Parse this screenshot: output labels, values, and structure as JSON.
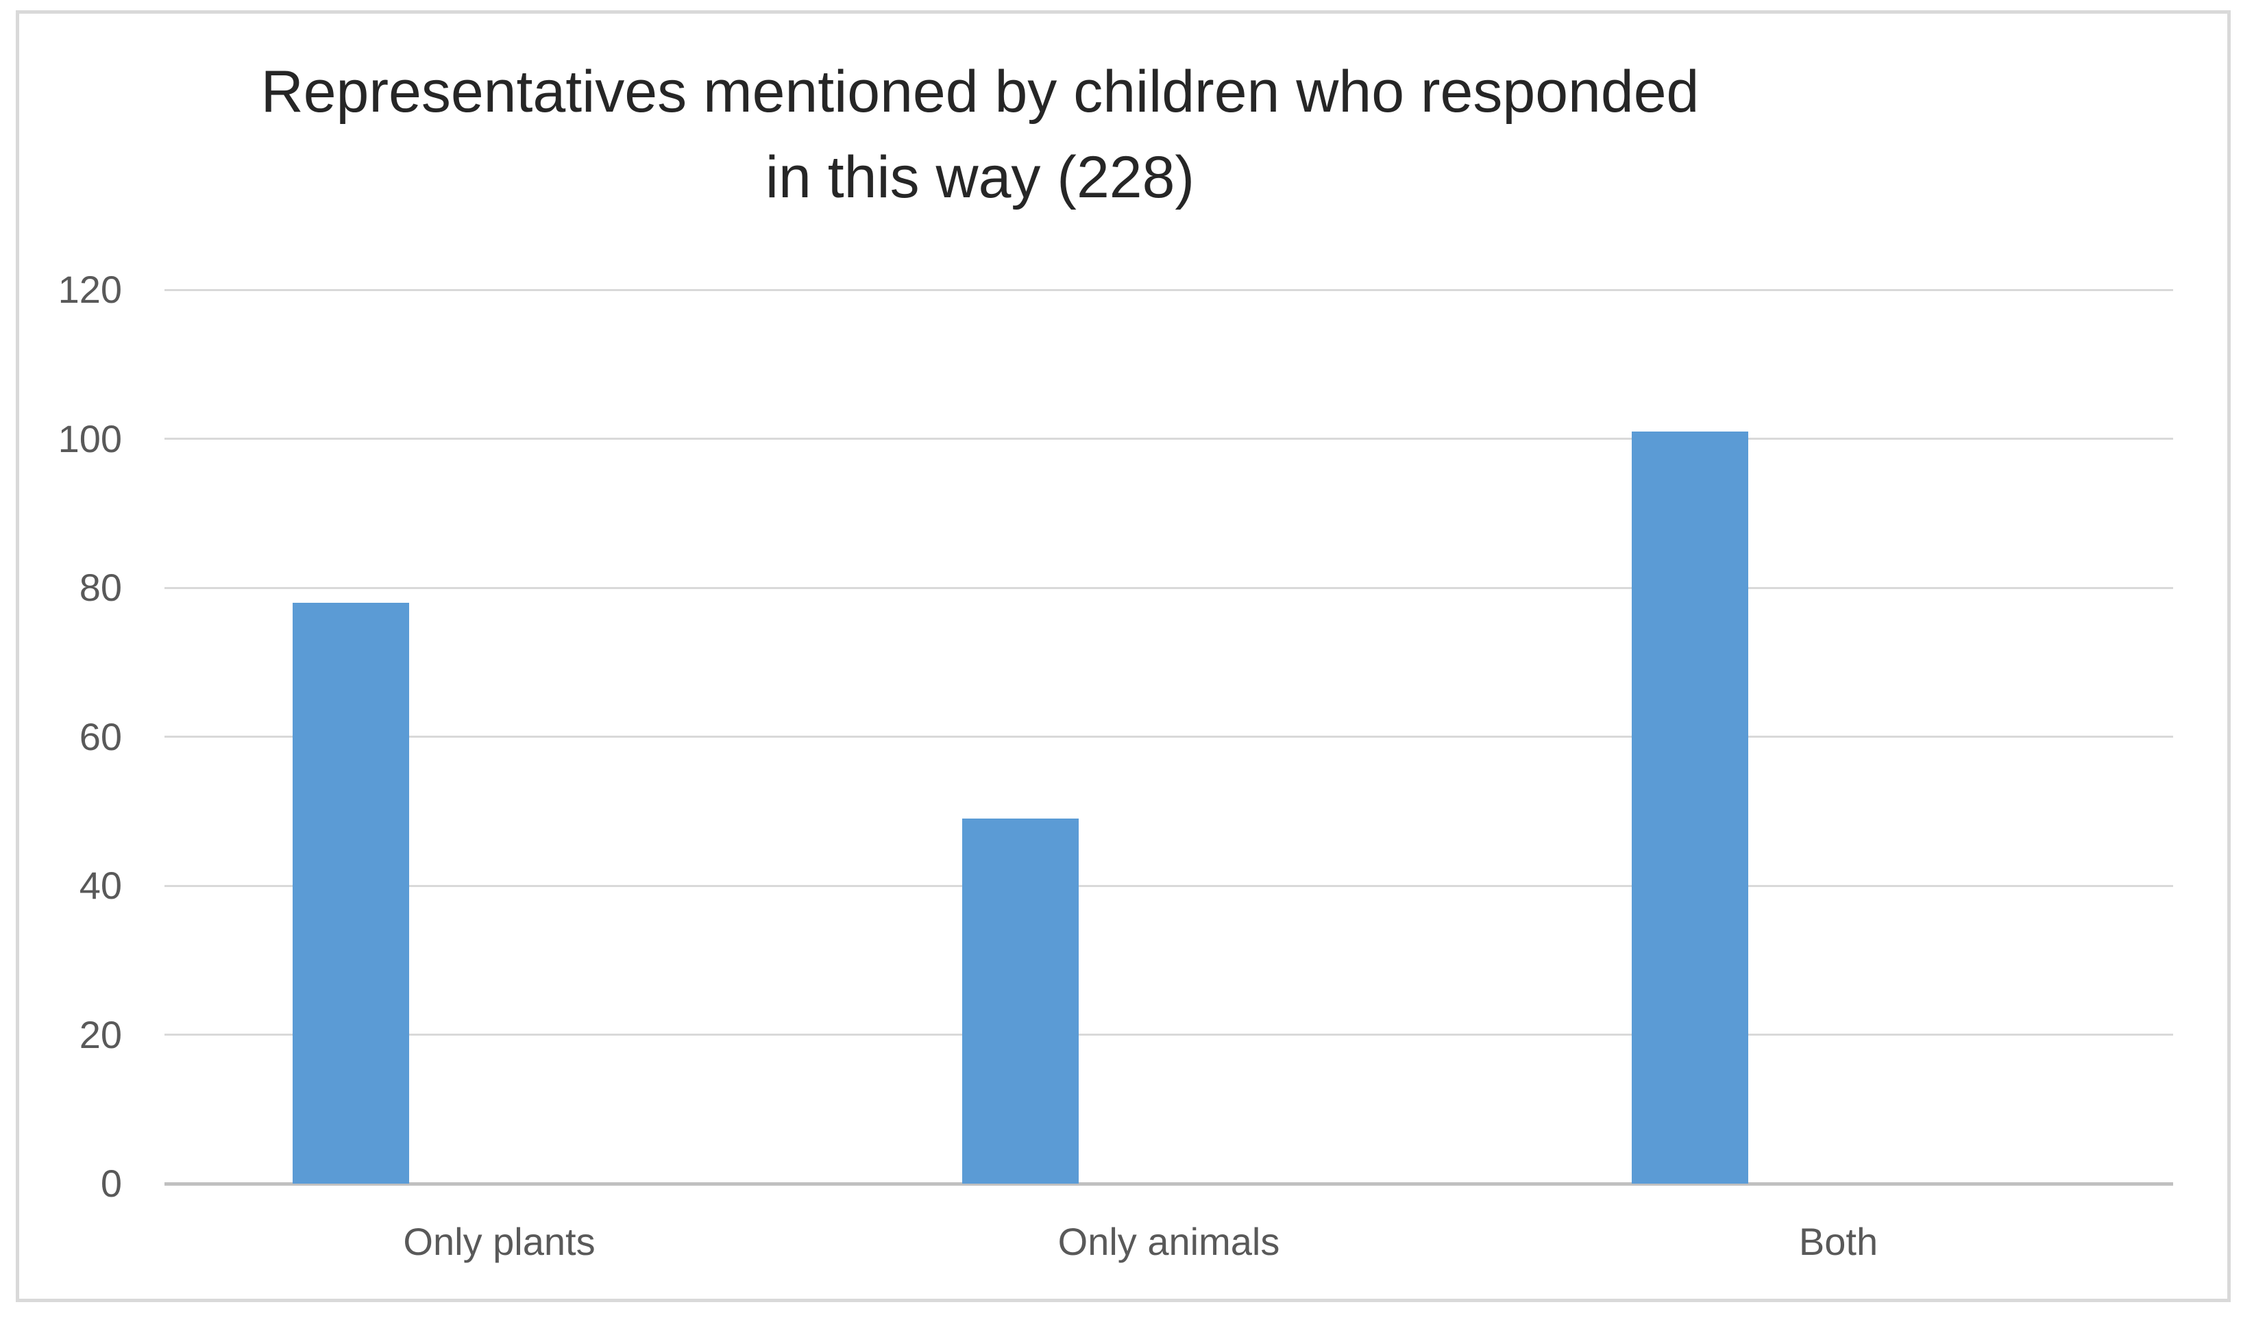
{
  "chart_data": {
    "type": "bar",
    "title": "Representatives mentioned by children who responded\nin this way (228)",
    "categories": [
      "Only plants",
      "Only animals",
      "Both"
    ],
    "values": [
      78,
      49,
      101
    ],
    "total_mentioned_in_title": 228,
    "xlabel": "",
    "ylabel": "",
    "ylim": [
      0,
      120
    ],
    "yticks": [
      120,
      100,
      80,
      60,
      40,
      20,
      0
    ],
    "grid": true,
    "legend": "none",
    "colors": {
      "bar": "#5B9BD5",
      "gridline": "#D9D9D9",
      "axis_line": "#C0C0C0",
      "tick_label": "#595959",
      "title": "#262626",
      "frame_border": "#D9D9D9",
      "background": "#FFFFFF"
    }
  }
}
